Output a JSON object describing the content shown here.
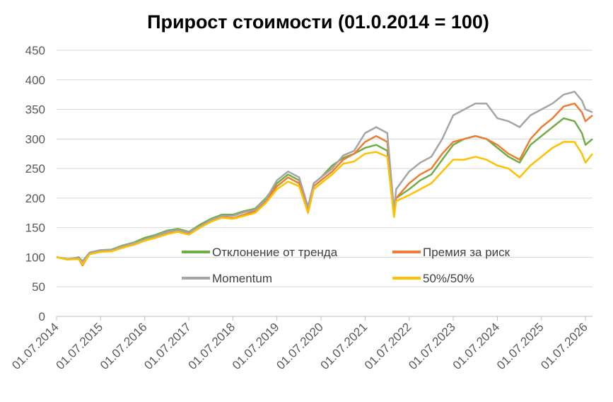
{
  "chart_data": {
    "type": "line",
    "title": "Прирост стоимости (01.0.2014 = 100)",
    "x": [
      "01.07.2014",
      "01.10.2014",
      "01.01.2015",
      "01.02.2015",
      "01.04.2015",
      "01.07.2015",
      "01.10.2015",
      "01.01.2016",
      "01.04.2016",
      "01.07.2016",
      "01.10.2016",
      "01.01.2017",
      "01.04.2017",
      "01.07.2017",
      "01.10.2017",
      "01.01.2018",
      "01.04.2018",
      "01.07.2018",
      "01.10.2018",
      "01.01.2019",
      "01.04.2019",
      "01.07.2019",
      "01.10.2019",
      "01.01.2020",
      "15.03.2020",
      "01.05.2020",
      "01.07.2020",
      "01.10.2020",
      "01.01.2021",
      "01.04.2021",
      "01.07.2021",
      "01.10.2021",
      "01.01.2022",
      "25.02.2022",
      "15.03.2022",
      "01.07.2022",
      "01.10.2022",
      "01.01.2023",
      "01.04.2023",
      "01.07.2023",
      "01.10.2023",
      "01.01.2024",
      "01.04.2024",
      "01.07.2024",
      "01.10.2024",
      "01.01.2025",
      "01.04.2025",
      "01.07.2025",
      "01.10.2025",
      "01.01.2026",
      "01.04.2026",
      "01.06.2026",
      "01.07.2026",
      "28.08.2026"
    ],
    "series": [
      {
        "name": "Отклонение от тренда",
        "color": "#70ad47",
        "values": [
          100,
          96,
          100,
          93,
          108,
          112,
          113,
          120,
          125,
          133,
          138,
          145,
          148,
          143,
          155,
          165,
          172,
          172,
          178,
          182,
          200,
          225,
          240,
          230,
          185,
          225,
          235,
          255,
          268,
          275,
          285,
          290,
          280,
          175,
          200,
          215,
          230,
          240,
          265,
          290,
          300,
          305,
          300,
          285,
          270,
          260,
          290,
          305,
          320,
          335,
          330,
          310,
          290,
          300
        ]
      },
      {
        "name": "Премия за риск",
        "color": "#ed7d31",
        "values": [
          100,
          97,
          97,
          86,
          106,
          110,
          110,
          117,
          121,
          128,
          133,
          140,
          143,
          139,
          150,
          162,
          168,
          166,
          172,
          178,
          196,
          220,
          235,
          225,
          180,
          220,
          230,
          245,
          265,
          275,
          295,
          305,
          295,
          170,
          200,
          225,
          240,
          250,
          275,
          295,
          300,
          305,
          300,
          290,
          275,
          265,
          300,
          320,
          335,
          355,
          360,
          345,
          330,
          340
        ]
      },
      {
        "name": "Momentum",
        "color": "#a5a5a5",
        "values": [
          100,
          97,
          99,
          92,
          108,
          112,
          112,
          119,
          124,
          130,
          136,
          143,
          146,
          142,
          152,
          163,
          170,
          170,
          176,
          180,
          198,
          230,
          245,
          235,
          185,
          225,
          235,
          250,
          272,
          280,
          310,
          320,
          310,
          180,
          215,
          245,
          260,
          270,
          300,
          340,
          350,
          360,
          360,
          335,
          330,
          320,
          340,
          350,
          360,
          375,
          380,
          365,
          350,
          345
        ]
      },
      {
        "name": "50%/50%",
        "color": "#ffc000",
        "values": [
          100,
          96,
          97,
          88,
          105,
          109,
          110,
          116,
          121,
          128,
          133,
          139,
          143,
          138,
          150,
          160,
          167,
          165,
          170,
          175,
          192,
          215,
          228,
          220,
          175,
          215,
          225,
          240,
          258,
          262,
          275,
          278,
          270,
          168,
          195,
          205,
          215,
          225,
          245,
          265,
          265,
          270,
          265,
          255,
          250,
          235,
          255,
          270,
          285,
          295,
          295,
          275,
          260,
          275
        ]
      }
    ],
    "xlim": [
      "01.07.2014",
      "28.08.2026"
    ],
    "xticks": [
      "01.07.2014",
      "01.07.2015",
      "01.07.2016",
      "01.07.2017",
      "01.07.2018",
      "01.07.2019",
      "01.07.2020",
      "01.07.2021",
      "01.07.2022",
      "01.07.2023",
      "01.07.2024",
      "01.07.2025",
      "01.07.2026"
    ],
    "ylim": [
      0,
      450
    ],
    "yticks": [
      0,
      50,
      100,
      150,
      200,
      250,
      300,
      350,
      400,
      450
    ],
    "grid": true
  }
}
